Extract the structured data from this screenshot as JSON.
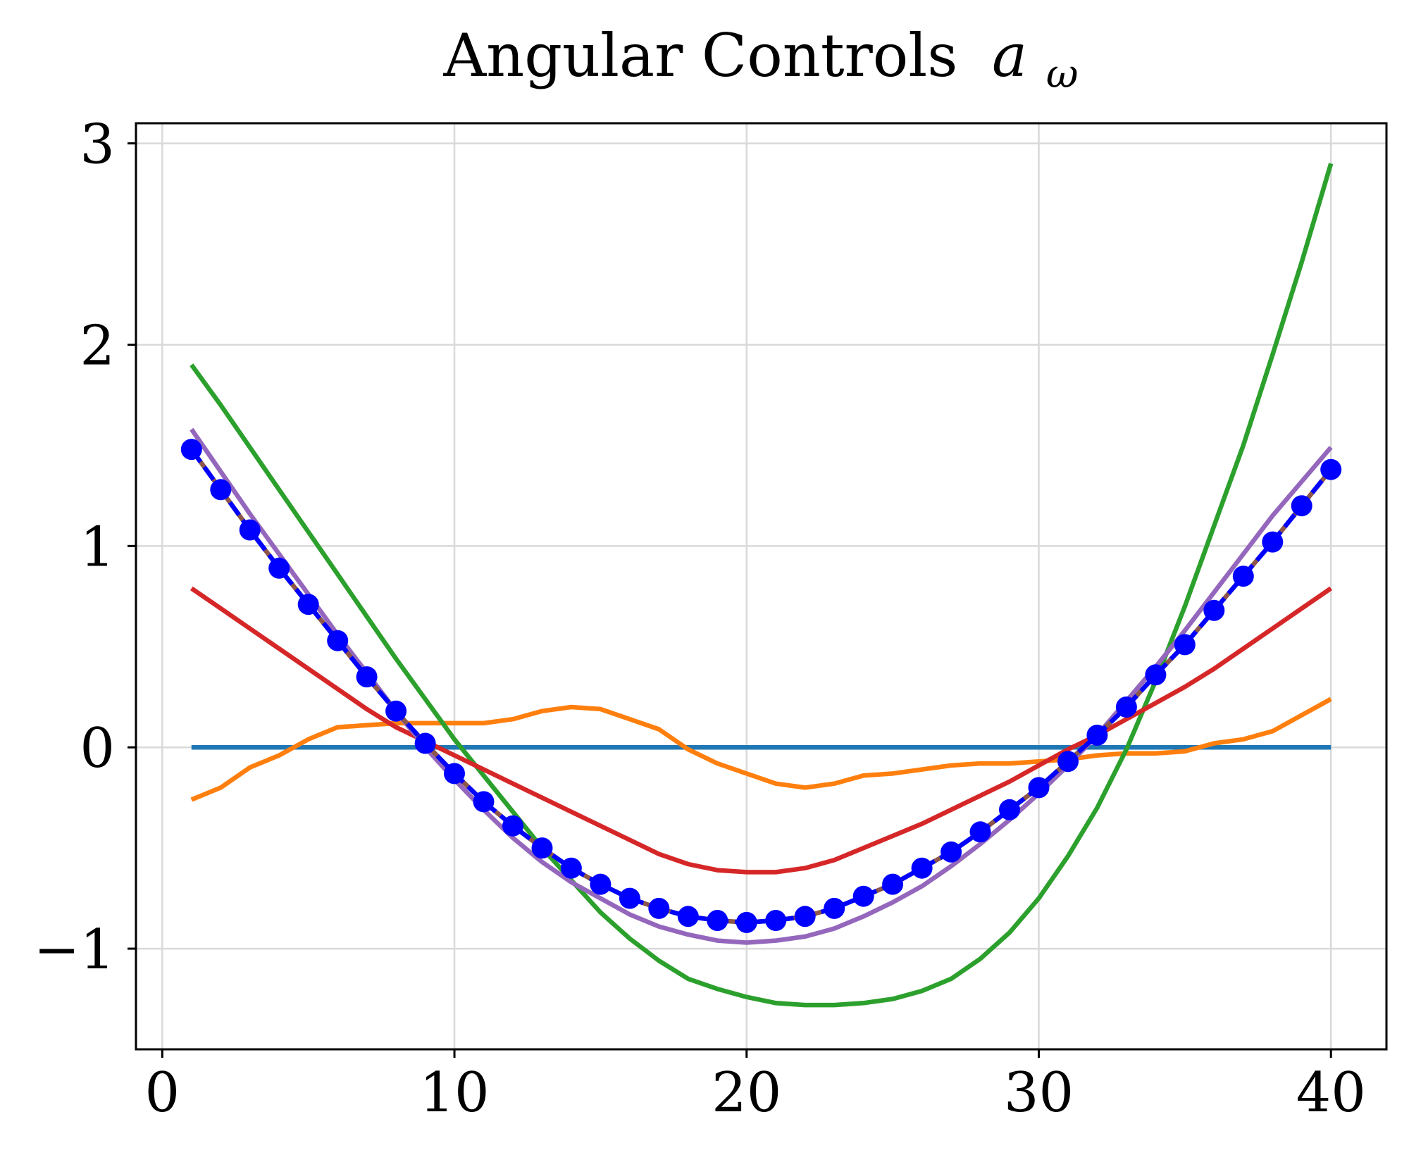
{
  "chart_data": {
    "type": "line",
    "title": "Angular Controls",
    "title_symbol": "a",
    "title_subscript": "ω",
    "xlabel": "",
    "ylabel": "",
    "xlim": [
      -0.9,
      41.9
    ],
    "ylim": [
      -1.5,
      3.1
    ],
    "xticks": [
      0,
      10,
      20,
      30,
      40
    ],
    "xtick_labels": [
      "0",
      "10",
      "20",
      "30",
      "40"
    ],
    "yticks": [
      -1,
      0,
      1,
      2,
      3
    ],
    "ytick_labels": [
      "−1",
      "0",
      "1",
      "2",
      "3"
    ],
    "grid": true,
    "x": [
      1,
      2,
      3,
      4,
      5,
      6,
      7,
      8,
      9,
      10,
      11,
      12,
      13,
      14,
      15,
      16,
      17,
      18,
      19,
      20,
      21,
      22,
      23,
      24,
      25,
      26,
      27,
      28,
      29,
      30,
      31,
      32,
      33,
      34,
      35,
      36,
      37,
      38,
      39,
      40
    ],
    "series": [
      {
        "color": "#1f77b4",
        "style": "solid",
        "values": [
          0,
          0,
          0,
          0,
          0,
          0,
          0,
          0,
          0,
          0,
          0,
          0,
          0,
          0,
          0,
          0,
          0,
          0,
          0,
          0,
          0,
          0,
          0,
          0,
          0,
          0,
          0,
          0,
          0,
          0,
          0,
          0,
          0,
          0,
          0,
          0,
          0,
          0,
          0,
          0
        ]
      },
      {
        "color": "#ff7f0e",
        "style": "solid",
        "values": [
          -0.26,
          -0.2,
          -0.1,
          -0.04,
          0.04,
          0.1,
          0.11,
          0.12,
          0.12,
          0.12,
          0.12,
          0.14,
          0.18,
          0.2,
          0.19,
          0.14,
          0.09,
          -0.01,
          -0.08,
          -0.13,
          -0.18,
          -0.2,
          -0.18,
          -0.14,
          -0.13,
          -0.11,
          -0.09,
          -0.08,
          -0.08,
          -0.07,
          -0.06,
          -0.04,
          -0.03,
          -0.03,
          -0.02,
          0.02,
          0.04,
          0.08,
          0.16,
          0.24
        ]
      },
      {
        "color": "#2ca02c",
        "style": "solid",
        "values": [
          1.9,
          1.7,
          1.49,
          1.28,
          1.07,
          0.86,
          0.65,
          0.44,
          0.24,
          0.04,
          -0.14,
          -0.32,
          -0.5,
          -0.66,
          -0.82,
          -0.95,
          -1.06,
          -1.15,
          -1.2,
          -1.24,
          -1.27,
          -1.28,
          -1.28,
          -1.27,
          -1.25,
          -1.21,
          -1.15,
          -1.05,
          -0.92,
          -0.75,
          -0.54,
          -0.3,
          -0.01,
          0.33,
          0.7,
          1.1,
          1.5,
          1.95,
          2.41,
          2.9
        ]
      },
      {
        "color": "#d62728",
        "style": "solid",
        "values": [
          0.79,
          0.69,
          0.59,
          0.49,
          0.39,
          0.29,
          0.19,
          0.1,
          0.03,
          -0.04,
          -0.11,
          -0.18,
          -0.25,
          -0.32,
          -0.39,
          -0.46,
          -0.53,
          -0.58,
          -0.61,
          -0.62,
          -0.62,
          -0.6,
          -0.56,
          -0.5,
          -0.44,
          -0.38,
          -0.31,
          -0.24,
          -0.17,
          -0.09,
          -0.01,
          0.06,
          0.14,
          0.22,
          0.3,
          0.39,
          0.49,
          0.59,
          0.69,
          0.79
        ]
      },
      {
        "color": "#9467bd",
        "style": "solid",
        "values": [
          1.58,
          1.37,
          1.16,
          0.96,
          0.76,
          0.56,
          0.37,
          0.18,
          0.0,
          -0.16,
          -0.31,
          -0.45,
          -0.57,
          -0.67,
          -0.75,
          -0.83,
          -0.89,
          -0.93,
          -0.96,
          -0.97,
          -0.96,
          -0.94,
          -0.9,
          -0.84,
          -0.77,
          -0.69,
          -0.59,
          -0.48,
          -0.36,
          -0.23,
          -0.09,
          0.06,
          0.23,
          0.4,
          0.58,
          0.77,
          0.96,
          1.15,
          1.32,
          1.49
        ]
      },
      {
        "color": "#8c564b",
        "style": "solid",
        "values": [
          1.48,
          1.28,
          1.08,
          0.89,
          0.71,
          0.53,
          0.35,
          0.18,
          0.02,
          -0.13,
          -0.27,
          -0.39,
          -0.5,
          -0.6,
          -0.68,
          -0.75,
          -0.8,
          -0.84,
          -0.86,
          -0.87,
          -0.86,
          -0.84,
          -0.8,
          -0.74,
          -0.68,
          -0.6,
          -0.52,
          -0.42,
          -0.31,
          -0.2,
          -0.07,
          0.06,
          0.2,
          0.36,
          0.51,
          0.68,
          0.85,
          1.02,
          1.2,
          1.38
        ]
      },
      {
        "color": "#0000ff",
        "style": "dashed",
        "marker": "circle",
        "values": [
          1.48,
          1.28,
          1.08,
          0.89,
          0.71,
          0.53,
          0.35,
          0.18,
          0.02,
          -0.13,
          -0.27,
          -0.39,
          -0.5,
          -0.6,
          -0.68,
          -0.75,
          -0.8,
          -0.84,
          -0.86,
          -0.87,
          -0.86,
          -0.84,
          -0.8,
          -0.74,
          -0.68,
          -0.6,
          -0.52,
          -0.42,
          -0.31,
          -0.2,
          -0.07,
          0.06,
          0.2,
          0.36,
          0.51,
          0.68,
          0.85,
          1.02,
          1.2,
          1.38
        ]
      }
    ]
  }
}
